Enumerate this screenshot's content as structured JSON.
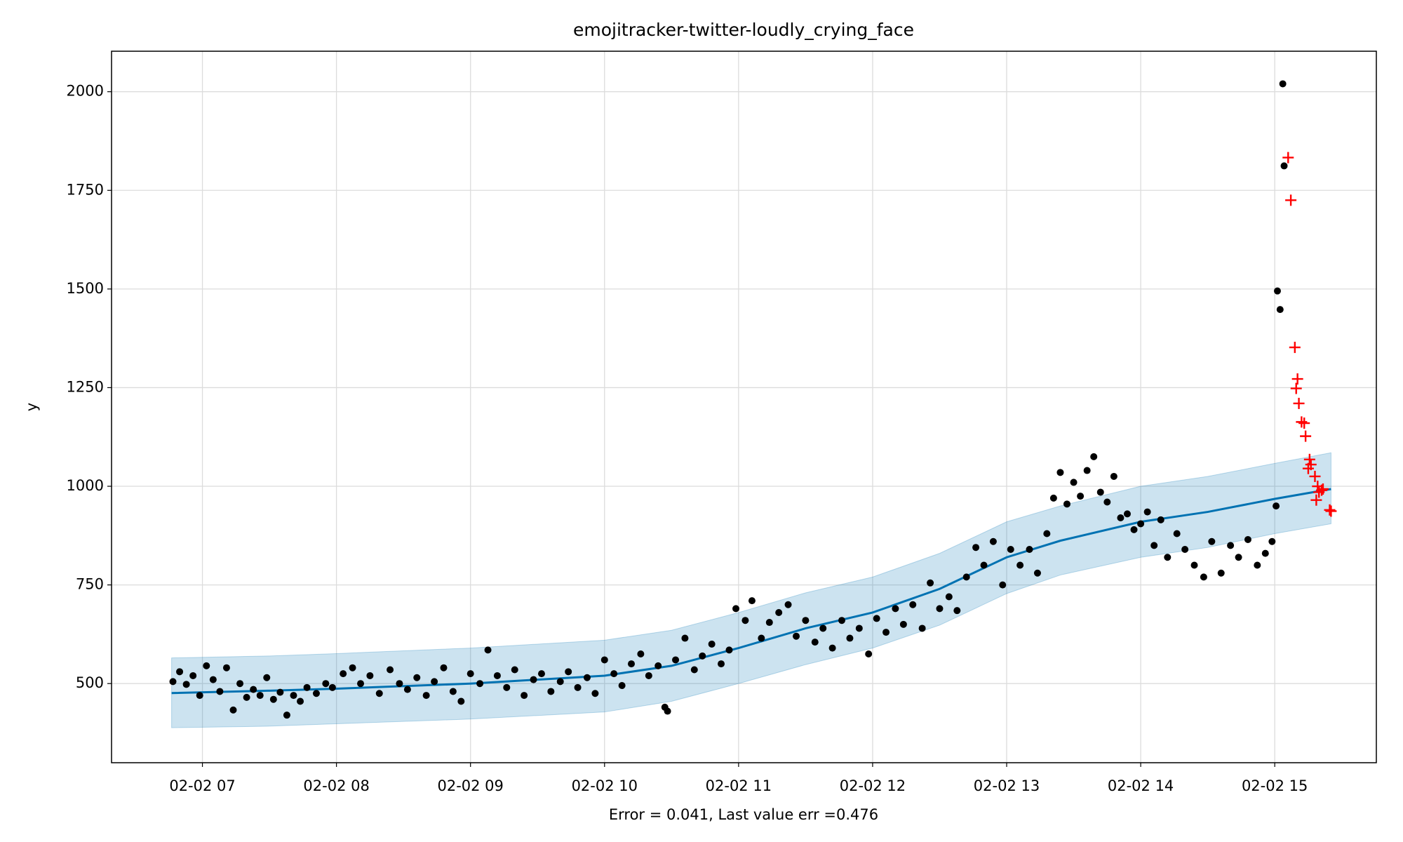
{
  "chart_data": {
    "type": "forecast",
    "title": "emojitracker-twitter-loudly_crying_face",
    "xlabel": "Error = 0.041, Last value err =0.476",
    "ylabel": "y",
    "grid": true,
    "xlim": [
      6.322,
      15.758
    ],
    "ylim": [
      299.4,
      2102.6
    ],
    "xticks": [
      {
        "value": 7,
        "label": "02-02 07"
      },
      {
        "value": 8,
        "label": "02-02 08"
      },
      {
        "value": 9,
        "label": "02-02 09"
      },
      {
        "value": 10,
        "label": "02-02 10"
      },
      {
        "value": 11,
        "label": "02-02 11"
      },
      {
        "value": 12,
        "label": "02-02 12"
      },
      {
        "value": 13,
        "label": "02-02 13"
      },
      {
        "value": 14,
        "label": "02-02 14"
      },
      {
        "value": 15,
        "label": "02-02 15"
      }
    ],
    "yticks": [
      500,
      750,
      1000,
      1250,
      1500,
      1750,
      2000
    ],
    "forecast": {
      "color": "#0072b2",
      "band_color": "#0072b2",
      "x": [
        6.77,
        7.5,
        8,
        9,
        10,
        10.5,
        11,
        11.5,
        12,
        12.5,
        13,
        13.4,
        14,
        14.5,
        15,
        15.42
      ],
      "values": [
        476,
        482,
        487,
        500,
        520,
        545,
        590,
        640,
        680,
        740,
        820,
        862,
        910,
        935,
        968,
        993
      ],
      "lower": [
        388,
        392,
        398,
        410,
        428,
        455,
        500,
        548,
        590,
        648,
        728,
        775,
        820,
        845,
        880,
        905
      ],
      "upper": [
        565,
        570,
        576,
        590,
        610,
        635,
        680,
        730,
        770,
        830,
        910,
        950,
        1000,
        1025,
        1058,
        1085
      ]
    },
    "points": {
      "color": "#000000",
      "x": [
        6.78,
        6.83,
        6.88,
        6.93,
        6.98,
        7.03,
        7.08,
        7.13,
        7.18,
        7.23,
        7.28,
        7.33,
        7.38,
        7.43,
        7.48,
        7.53,
        7.58,
        7.63,
        7.68,
        7.73,
        7.78,
        7.85,
        7.92,
        7.97,
        8.05,
        8.12,
        8.18,
        8.25,
        8.32,
        8.4,
        8.47,
        8.53,
        8.6,
        8.67,
        8.73,
        8.8,
        8.87,
        8.93,
        9.0,
        9.07,
        9.13,
        9.2,
        9.27,
        9.33,
        9.4,
        9.47,
        9.53,
        9.6,
        9.67,
        9.73,
        9.8,
        9.87,
        9.93,
        10.0,
        10.07,
        10.13,
        10.2,
        10.27,
        10.33,
        10.4,
        10.45,
        10.47,
        10.53,
        10.6,
        10.67,
        10.73,
        10.8,
        10.87,
        10.93,
        10.98,
        11.05,
        11.1,
        11.17,
        11.23,
        11.3,
        11.37,
        11.43,
        11.5,
        11.57,
        11.63,
        11.7,
        11.77,
        11.83,
        11.9,
        11.97,
        12.03,
        12.1,
        12.17,
        12.23,
        12.3,
        12.37,
        12.43,
        12.5,
        12.57,
        12.63,
        12.7,
        12.77,
        12.83,
        12.9,
        12.97,
        13.03,
        13.1,
        13.17,
        13.23,
        13.3,
        13.35,
        13.4,
        13.45,
        13.5,
        13.55,
        13.6,
        13.65,
        13.7,
        13.75,
        13.8,
        13.85,
        13.9,
        13.95,
        14.0,
        14.05,
        14.1,
        14.15,
        14.2,
        14.27,
        14.33,
        14.4,
        14.47,
        14.53,
        14.6,
        14.67,
        14.73,
        14.8,
        14.87,
        14.93,
        14.98,
        15.01,
        15.02,
        15.04,
        15.06,
        15.07
      ],
      "values": [
        505,
        530,
        498,
        520,
        470,
        545,
        510,
        480,
        540,
        433,
        500,
        465,
        485,
        470,
        515,
        460,
        478,
        420,
        470,
        455,
        490,
        475,
        500,
        490,
        525,
        540,
        500,
        520,
        475,
        535,
        500,
        485,
        515,
        470,
        505,
        540,
        480,
        455,
        525,
        500,
        585,
        520,
        490,
        535,
        470,
        510,
        525,
        480,
        505,
        530,
        490,
        515,
        475,
        560,
        525,
        495,
        550,
        575,
        520,
        545,
        440,
        430,
        560,
        615,
        535,
        570,
        600,
        550,
        585,
        690,
        660,
        710,
        615,
        655,
        680,
        700,
        620,
        660,
        605,
        640,
        590,
        660,
        615,
        640,
        575,
        665,
        630,
        690,
        650,
        700,
        640,
        755,
        690,
        720,
        685,
        770,
        845,
        800,
        860,
        750,
        840,
        800,
        840,
        780,
        880,
        970,
        1035,
        955,
        1010,
        975,
        1040,
        1075,
        985,
        960,
        1025,
        920,
        930,
        890,
        905,
        935,
        850,
        915,
        820,
        880,
        840,
        800,
        770,
        860,
        780,
        850,
        820,
        865,
        800,
        830,
        860,
        950,
        1495,
        1448,
        2020,
        1812
      ]
    },
    "test": {
      "color": "#ff0000",
      "x": [
        15.1,
        15.12,
        15.15,
        15.17,
        15.16,
        15.18,
        15.2,
        15.22,
        15.23,
        15.26,
        15.27,
        15.25,
        15.3,
        15.32,
        15.33,
        15.35,
        15.31,
        15.36,
        15.41,
        15.42
      ],
      "values": [
        1833,
        1725,
        1352,
        1272,
        1248,
        1210,
        1163,
        1160,
        1127,
        1068,
        1055,
        1045,
        1025,
        1000,
        985,
        990,
        965,
        993,
        940,
        937
      ]
    }
  }
}
